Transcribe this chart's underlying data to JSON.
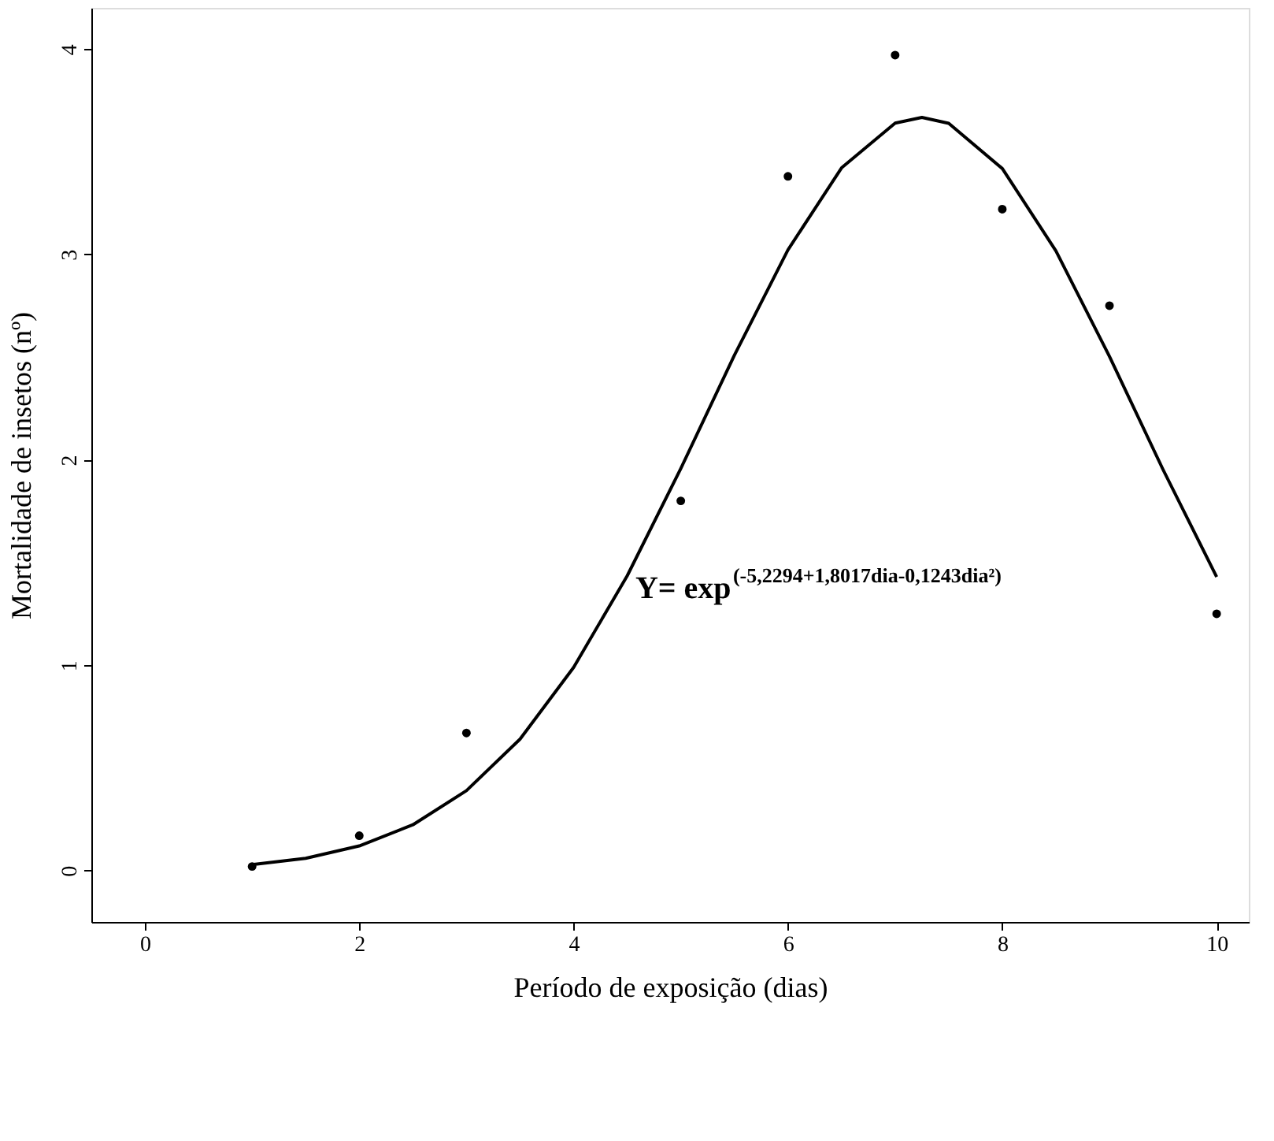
{
  "chart_data": {
    "type": "scatter",
    "xlabel": "Período de exposição (dias)",
    "ylabel": "Mortalidade de insetos (nº)",
    "series": [
      {
        "color": "#000000",
        "marker": "circle",
        "x": [
          1,
          2,
          3,
          5,
          6,
          7,
          8,
          9,
          10
        ],
        "values": [
          0.02,
          0.17,
          0.67,
          1.8,
          3.38,
          3.97,
          3.22,
          2.75,
          1.25
        ]
      },
      {
        "type": "line",
        "color": "#000000",
        "marker": "none",
        "line_style": "solid",
        "x": [
          1,
          1.5,
          2,
          2.5,
          3,
          3.5,
          4,
          4.5,
          5,
          5.5,
          6,
          6.5,
          7,
          7.25,
          7.5,
          8,
          8.5,
          9,
          9.5,
          10
        ],
        "values": [
          0.029,
          0.06,
          0.12,
          0.223,
          0.389,
          0.64,
          0.989,
          1.435,
          1.957,
          2.509,
          3.022,
          3.421,
          3.639,
          3.667,
          3.638,
          3.418,
          3.017,
          2.503,
          1.952,
          1.43
        ]
      }
    ],
    "xlim": [
      -0.5,
      10.3
    ],
    "ylim": [
      -0.25,
      4.2
    ],
    "xticks": [
      0,
      2,
      4,
      6,
      8,
      10
    ],
    "yticks": [
      0,
      1,
      2,
      3,
      4
    ],
    "grid": false,
    "annotations": [
      "Y= exp$^{(-5,2294+1,8017dia-0,1243dia²)}$"
    ]
  }
}
